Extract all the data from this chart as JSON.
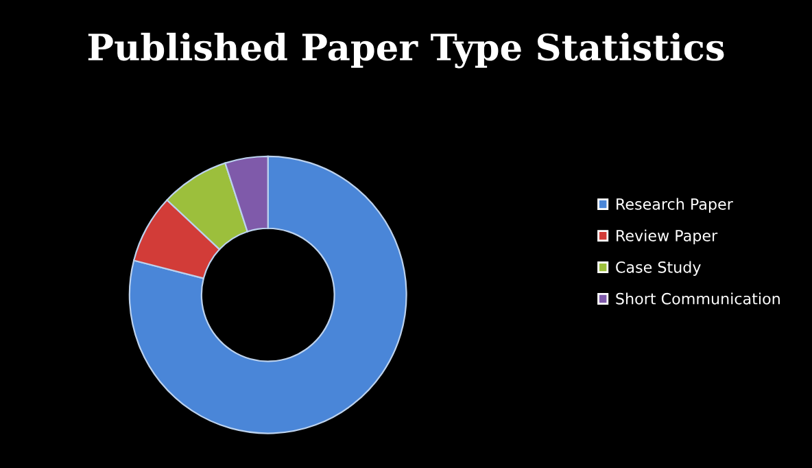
{
  "chart_data": {
    "type": "donut",
    "title": "Published Paper Type Statistics",
    "categories": [
      "Research Paper",
      "Review Paper",
      "Case Study",
      "Short Communication"
    ],
    "values": [
      79,
      8,
      8,
      5
    ],
    "colors": [
      "#4a86d8",
      "#d23c38",
      "#9cbf3c",
      "#7f5aaa"
    ],
    "legend": "right"
  }
}
